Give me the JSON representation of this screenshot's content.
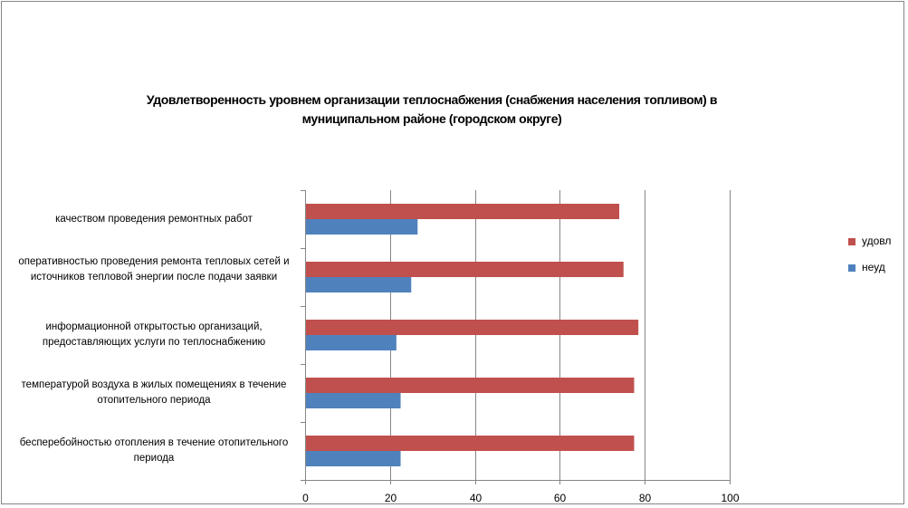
{
  "chart_data": {
    "type": "bar",
    "orientation": "horizontal",
    "title": "Удовлетворенность уровнем организации теплоснабжения (снабжения населения топливом) в муниципальном районе (городском округе)",
    "categories": [
      "качеством проведения ремонтных работ",
      "оперативностью проведения ремонта тепловых сетей и источников тепловой энергии после подачи заявки",
      "информационной открытостью организаций, предоставляющих услуги по теплоснабжению",
      "температурой воздуха в жилых помещениях в течение отопительного периода",
      "бесперебойностью отопления в течение отопительного периода"
    ],
    "series": [
      {
        "name": "удовл",
        "color": "#c0504d",
        "values": [
          74,
          75,
          78.5,
          77.5,
          77.5
        ]
      },
      {
        "name": "неуд",
        "color": "#4f81bd",
        "values": [
          26.5,
          25,
          21.5,
          22.5,
          22.5
        ]
      }
    ],
    "xlim": [
      0,
      100
    ],
    "x_ticks": [
      "0",
      "20",
      "40",
      "60",
      "80",
      "100"
    ],
    "grid": true,
    "legend_position": "right"
  }
}
